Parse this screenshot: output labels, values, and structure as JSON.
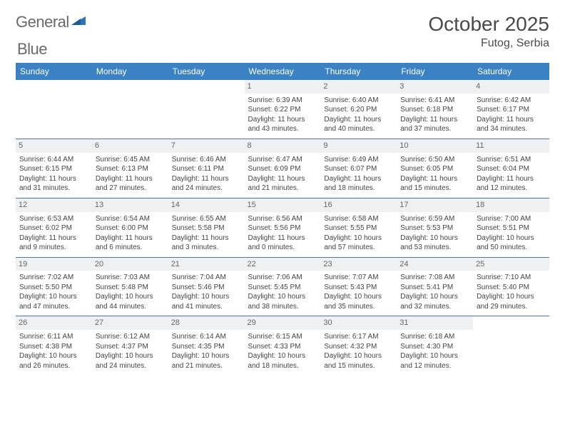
{
  "logo": {
    "word1": "General",
    "word2": "Blue"
  },
  "header": {
    "title": "October 2025",
    "location": "Futog, Serbia"
  },
  "colors": {
    "header_bg": "#3b82c4",
    "header_fg": "#ffffff",
    "daynum_bg": "#eef0f2",
    "daynum_fg": "#666666",
    "row_divider": "#4a77a8",
    "text": "#444444",
    "logo_gray": "#6a6a6a",
    "logo_blue": "#2976bb"
  },
  "day_headers": [
    "Sunday",
    "Monday",
    "Tuesday",
    "Wednesday",
    "Thursday",
    "Friday",
    "Saturday"
  ],
  "weeks": [
    [
      {
        "n": "",
        "sr": "",
        "ss": "",
        "dl": ""
      },
      {
        "n": "",
        "sr": "",
        "ss": "",
        "dl": ""
      },
      {
        "n": "",
        "sr": "",
        "ss": "",
        "dl": ""
      },
      {
        "n": "1",
        "sr": "Sunrise: 6:39 AM",
        "ss": "Sunset: 6:22 PM",
        "dl": "Daylight: 11 hours and 43 minutes."
      },
      {
        "n": "2",
        "sr": "Sunrise: 6:40 AM",
        "ss": "Sunset: 6:20 PM",
        "dl": "Daylight: 11 hours and 40 minutes."
      },
      {
        "n": "3",
        "sr": "Sunrise: 6:41 AM",
        "ss": "Sunset: 6:18 PM",
        "dl": "Daylight: 11 hours and 37 minutes."
      },
      {
        "n": "4",
        "sr": "Sunrise: 6:42 AM",
        "ss": "Sunset: 6:17 PM",
        "dl": "Daylight: 11 hours and 34 minutes."
      }
    ],
    [
      {
        "n": "5",
        "sr": "Sunrise: 6:44 AM",
        "ss": "Sunset: 6:15 PM",
        "dl": "Daylight: 11 hours and 31 minutes."
      },
      {
        "n": "6",
        "sr": "Sunrise: 6:45 AM",
        "ss": "Sunset: 6:13 PM",
        "dl": "Daylight: 11 hours and 27 minutes."
      },
      {
        "n": "7",
        "sr": "Sunrise: 6:46 AM",
        "ss": "Sunset: 6:11 PM",
        "dl": "Daylight: 11 hours and 24 minutes."
      },
      {
        "n": "8",
        "sr": "Sunrise: 6:47 AM",
        "ss": "Sunset: 6:09 PM",
        "dl": "Daylight: 11 hours and 21 minutes."
      },
      {
        "n": "9",
        "sr": "Sunrise: 6:49 AM",
        "ss": "Sunset: 6:07 PM",
        "dl": "Daylight: 11 hours and 18 minutes."
      },
      {
        "n": "10",
        "sr": "Sunrise: 6:50 AM",
        "ss": "Sunset: 6:05 PM",
        "dl": "Daylight: 11 hours and 15 minutes."
      },
      {
        "n": "11",
        "sr": "Sunrise: 6:51 AM",
        "ss": "Sunset: 6:04 PM",
        "dl": "Daylight: 11 hours and 12 minutes."
      }
    ],
    [
      {
        "n": "12",
        "sr": "Sunrise: 6:53 AM",
        "ss": "Sunset: 6:02 PM",
        "dl": "Daylight: 11 hours and 9 minutes."
      },
      {
        "n": "13",
        "sr": "Sunrise: 6:54 AM",
        "ss": "Sunset: 6:00 PM",
        "dl": "Daylight: 11 hours and 6 minutes."
      },
      {
        "n": "14",
        "sr": "Sunrise: 6:55 AM",
        "ss": "Sunset: 5:58 PM",
        "dl": "Daylight: 11 hours and 3 minutes."
      },
      {
        "n": "15",
        "sr": "Sunrise: 6:56 AM",
        "ss": "Sunset: 5:56 PM",
        "dl": "Daylight: 11 hours and 0 minutes."
      },
      {
        "n": "16",
        "sr": "Sunrise: 6:58 AM",
        "ss": "Sunset: 5:55 PM",
        "dl": "Daylight: 10 hours and 57 minutes."
      },
      {
        "n": "17",
        "sr": "Sunrise: 6:59 AM",
        "ss": "Sunset: 5:53 PM",
        "dl": "Daylight: 10 hours and 53 minutes."
      },
      {
        "n": "18",
        "sr": "Sunrise: 7:00 AM",
        "ss": "Sunset: 5:51 PM",
        "dl": "Daylight: 10 hours and 50 minutes."
      }
    ],
    [
      {
        "n": "19",
        "sr": "Sunrise: 7:02 AM",
        "ss": "Sunset: 5:50 PM",
        "dl": "Daylight: 10 hours and 47 minutes."
      },
      {
        "n": "20",
        "sr": "Sunrise: 7:03 AM",
        "ss": "Sunset: 5:48 PM",
        "dl": "Daylight: 10 hours and 44 minutes."
      },
      {
        "n": "21",
        "sr": "Sunrise: 7:04 AM",
        "ss": "Sunset: 5:46 PM",
        "dl": "Daylight: 10 hours and 41 minutes."
      },
      {
        "n": "22",
        "sr": "Sunrise: 7:06 AM",
        "ss": "Sunset: 5:45 PM",
        "dl": "Daylight: 10 hours and 38 minutes."
      },
      {
        "n": "23",
        "sr": "Sunrise: 7:07 AM",
        "ss": "Sunset: 5:43 PM",
        "dl": "Daylight: 10 hours and 35 minutes."
      },
      {
        "n": "24",
        "sr": "Sunrise: 7:08 AM",
        "ss": "Sunset: 5:41 PM",
        "dl": "Daylight: 10 hours and 32 minutes."
      },
      {
        "n": "25",
        "sr": "Sunrise: 7:10 AM",
        "ss": "Sunset: 5:40 PM",
        "dl": "Daylight: 10 hours and 29 minutes."
      }
    ],
    [
      {
        "n": "26",
        "sr": "Sunrise: 6:11 AM",
        "ss": "Sunset: 4:38 PM",
        "dl": "Daylight: 10 hours and 26 minutes."
      },
      {
        "n": "27",
        "sr": "Sunrise: 6:12 AM",
        "ss": "Sunset: 4:37 PM",
        "dl": "Daylight: 10 hours and 24 minutes."
      },
      {
        "n": "28",
        "sr": "Sunrise: 6:14 AM",
        "ss": "Sunset: 4:35 PM",
        "dl": "Daylight: 10 hours and 21 minutes."
      },
      {
        "n": "29",
        "sr": "Sunrise: 6:15 AM",
        "ss": "Sunset: 4:33 PM",
        "dl": "Daylight: 10 hours and 18 minutes."
      },
      {
        "n": "30",
        "sr": "Sunrise: 6:17 AM",
        "ss": "Sunset: 4:32 PM",
        "dl": "Daylight: 10 hours and 15 minutes."
      },
      {
        "n": "31",
        "sr": "Sunrise: 6:18 AM",
        "ss": "Sunset: 4:30 PM",
        "dl": "Daylight: 10 hours and 12 minutes."
      },
      {
        "n": "",
        "sr": "",
        "ss": "",
        "dl": ""
      }
    ]
  ]
}
